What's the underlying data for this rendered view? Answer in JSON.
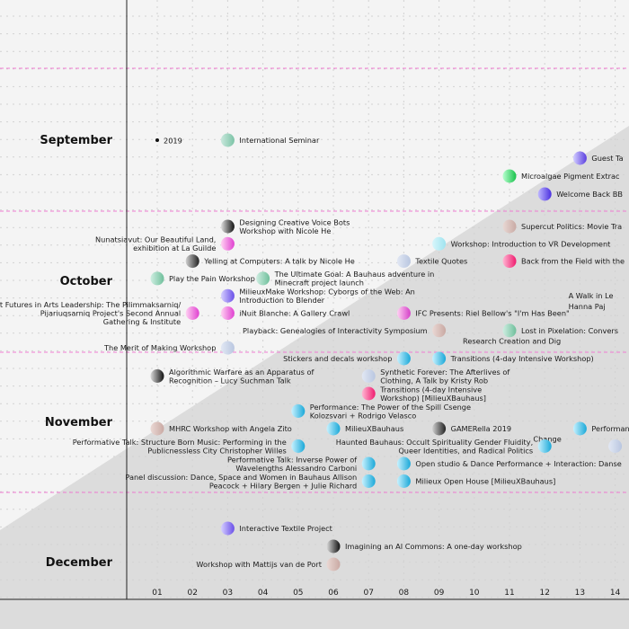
{
  "colors": {
    "background": "#f4f4f4",
    "wedge": "#dcdcdc",
    "grid": "#d2d2d2",
    "month_line": "#f07bd2",
    "axis": "#222222"
  },
  "chart_data": {
    "type": "scatter",
    "title": "",
    "xlabel": "",
    "ylabel": "",
    "x_tick_labels": [
      "01",
      "02",
      "03",
      "04",
      "05",
      "06",
      "07",
      "08",
      "09",
      "10",
      "11",
      "12",
      "13",
      "14"
    ],
    "months": [
      "September",
      "October",
      "November",
      "December"
    ],
    "year_label": "2019",
    "events": [
      {
        "label": "International Seminar",
        "month": "September",
        "day": 3,
        "row": 0,
        "color": [
          "#c9e8dd",
          "#7cc3a6"
        ],
        "label_side": "right"
      },
      {
        "label": "Guest Ta",
        "month": "September",
        "day": 13,
        "row": 1,
        "color": [
          "#d4d0ff",
          "#5b3fe0"
        ],
        "label_side": "right"
      },
      {
        "label": "Microalgae Pigment Extrac",
        "month": "September",
        "day": 11,
        "row": 2,
        "color": [
          "#b8ffd0",
          "#18c24a"
        ],
        "label_side": "right"
      },
      {
        "label": "Welcome Back BB",
        "month": "September",
        "day": 12,
        "row": 3,
        "color": [
          "#bfb8ff",
          "#4a2fe0"
        ],
        "label_side": "right"
      },
      {
        "label": "Designing Creative Voice Bots Workshop with Nicole He",
        "month": "October",
        "day": 3,
        "row": 0,
        "color": [
          "#e0e0e0",
          "#111111"
        ],
        "label_side": "right"
      },
      {
        "label": "Supercut Politics: Movie Tra",
        "month": "October",
        "day": 11,
        "row": 0,
        "color": [
          "#e8d8d4",
          "#c9aaa4"
        ],
        "label_side": "right"
      },
      {
        "label": "Nunatsiavut: Our Beautiful Land, exhibition at La Guilde",
        "month": "October",
        "day": 3,
        "row": 1,
        "color": [
          "#ffd2f2",
          "#e040d0"
        ],
        "label_side": "left"
      },
      {
        "label": "Workshop: Introduction to VR Development",
        "month": "October",
        "day": 9,
        "row": 1,
        "color": [
          "#d8f6fb",
          "#9fe3ef"
        ],
        "label_side": "right"
      },
      {
        "label": "Yelling at Computers: A talk by Nicole He",
        "month": "October",
        "day": 2,
        "row": 2,
        "color": [
          "#d0d0d0",
          "#222222"
        ],
        "label_side": "right"
      },
      {
        "label": "Textile Quotes",
        "month": "October",
        "day": 8,
        "row": 2,
        "color": [
          "#e2e8f4",
          "#b9c6e0"
        ],
        "label_side": "right"
      },
      {
        "label": "Back from the Field with the",
        "month": "October",
        "day": 11,
        "row": 2,
        "color": [
          "#ffb8d4",
          "#f01b6e"
        ],
        "label_side": "right"
      },
      {
        "label": "Play the Pain Workshop",
        "month": "October",
        "day": 1,
        "row": 3,
        "color": [
          "#cfeee2",
          "#6fbf9b"
        ],
        "label_side": "right"
      },
      {
        "label": "The Ultimate Goal: A Bauhaus adventure in Minecraft project launch",
        "month": "October",
        "day": 4,
        "row": 3,
        "color": [
          "#cfeee2",
          "#6fbf9b"
        ],
        "label_side": "right"
      },
      {
        "label": "MilieuxMake Workshop: Cyborgs of the Web: An Introduction to Blender",
        "month": "October",
        "day": 3,
        "row": 4,
        "color": [
          "#d6d0ff",
          "#6a4fe8"
        ],
        "label_side": "right"
      },
      {
        "label": "A Walk in Le",
        "month": "October",
        "day": 14,
        "row": 4,
        "color": [
          "#e0e0e0",
          "#999999"
        ],
        "label_side": "none"
      },
      {
        "label": "Hanna Paj",
        "month": "October",
        "day": 14,
        "row": 4.6,
        "color": [
          "#e0e0e0",
          "#999999"
        ],
        "label_side": "none"
      },
      {
        "label": "Inuit Futures in Arts Leadership: The Pilimmaksarniq/ Pijariuqsarniq Project's Second Annual Gathering & Institute",
        "month": "October",
        "day": 2,
        "row": 5,
        "color": [
          "#ffd2f2",
          "#e040d0"
        ],
        "label_side": "left"
      },
      {
        "label": "iNuit Blanche: A Gallery Crawl",
        "month": "October",
        "day": 3,
        "row": 5,
        "color": [
          "#ffd2f2",
          "#e040d0"
        ],
        "label_side": "right"
      },
      {
        "label": "IFC Presents: Riel Bellow's \"I'm Has Been\"",
        "month": "October",
        "day": 8,
        "row": 5,
        "color": [
          "#ffd2f2",
          "#d53fc8"
        ],
        "label_side": "right"
      },
      {
        "label": "Playback: Genealogies of Interactivity Symposium",
        "month": "October",
        "day": 9,
        "row": 6,
        "color": [
          "#ead8d4",
          "#c9a9a3"
        ],
        "label_side": "left"
      },
      {
        "label": "Lost in Pixelation: Convers",
        "month": "October",
        "day": 11,
        "row": 6,
        "color": [
          "#cfeee2",
          "#6fbf9b"
        ],
        "label_side": "right"
      },
      {
        "label": "Research Creation and Dig",
        "month": "October",
        "day": 11,
        "row": 6.6,
        "color": [
          "#cfeee2",
          "#6fbf9b"
        ],
        "label_side": "none"
      },
      {
        "label": "The Merit of Making Workshop",
        "month": "October",
        "day": 3,
        "row": 7,
        "color": [
          "#e2e8f4",
          "#b9c6e0"
        ],
        "label_side": "left"
      },
      {
        "label": "Stickers and decals workshop",
        "month": "November",
        "day": 8,
        "row": 0,
        "color": [
          "#c8f2ff",
          "#1aa8d8"
        ],
        "label_side": "left"
      },
      {
        "label": "Transitions (4-day Intensive Workshop)",
        "month": "November",
        "day": 9,
        "row": 0,
        "color": [
          "#c8f2ff",
          "#1aa8d8"
        ],
        "label_side": "right"
      },
      {
        "label": "Algorithmic Warfare as an Apparatus of Recognition – Lucy Suchman Talk",
        "month": "November",
        "day": 1,
        "row": 1,
        "color": [
          "#dadada",
          "#111111"
        ],
        "label_side": "right"
      },
      {
        "label": "Synthetic Forever: The Afterlives of Clothing, A Talk by Kristy Rob",
        "month": "November",
        "day": 7,
        "row": 1,
        "color": [
          "#e2e8f4",
          "#b9c6e0"
        ],
        "label_side": "right"
      },
      {
        "label": "Transitions (4-day Intensive Workshop) [MilieuXBauhaus]",
        "month": "November",
        "day": 7,
        "row": 2,
        "color": [
          "#ffb8d4",
          "#f01b6e"
        ],
        "label_side": "right"
      },
      {
        "label": "Performance: The Power of the Spill Csenge Kolozsvari + Rodrigo Velasco",
        "month": "November",
        "day": 5,
        "row": 3,
        "color": [
          "#c8f2ff",
          "#1aa8d8"
        ],
        "label_side": "right"
      },
      {
        "label": "MHRC Workshop with Angela Zito",
        "month": "November",
        "day": 1,
        "row": 4,
        "color": [
          "#ead8d4",
          "#c9a9a3"
        ],
        "label_side": "right"
      },
      {
        "label": "MilieuXBauhaus",
        "month": "November",
        "day": 6,
        "row": 4,
        "color": [
          "#c8f2ff",
          "#1aa8d8"
        ],
        "label_side": "right"
      },
      {
        "label": "GAMERella 2019",
        "month": "November",
        "day": 9,
        "row": 4,
        "color": [
          "#d0d0d0",
          "#222222"
        ],
        "label_side": "right"
      },
      {
        "label": "Performan",
        "month": "November",
        "day": 13,
        "row": 4,
        "color": [
          "#c8f2ff",
          "#1aa8d8"
        ],
        "label_side": "right"
      },
      {
        "label": "Change",
        "month": "November",
        "day": 13,
        "row": 4.6,
        "color": [
          "#c8f2ff",
          "#1aa8d8"
        ],
        "label_side": "none"
      },
      {
        "label": "Performative Talk: Structure Born Music: Performing in the Publicnessless City Christopher Willes",
        "month": "November",
        "day": 5,
        "row": 5,
        "color": [
          "#c8f2ff",
          "#1aa8d8"
        ],
        "label_side": "left"
      },
      {
        "label": "Haunted Bauhaus: Occult Spirituality Gender Fluidity, Queer Identities, and Radical Politics",
        "month": "November",
        "day": 12,
        "row": 5,
        "color": [
          "#c8f2ff",
          "#1aa8d8"
        ],
        "label_side": "left"
      },
      {
        "label": "",
        "month": "November",
        "day": 14,
        "row": 5,
        "color": [
          "#e2e8f4",
          "#b9c6e0"
        ],
        "label_side": "none"
      },
      {
        "label": "Performative Talk: Inverse Power of Wavelengths Alessandro Carboni",
        "month": "November",
        "day": 7,
        "row": 6,
        "color": [
          "#c8f2ff",
          "#1aa8d8"
        ],
        "label_side": "left"
      },
      {
        "label": "Open studio & Dance Performance + Interaction: Danse",
        "month": "November",
        "day": 8,
        "row": 6,
        "color": [
          "#c8f2ff",
          "#1aa8d8"
        ],
        "label_side": "right"
      },
      {
        "label": "Panel discussion: Dance, Space and Women in Bauhaus Allison Peacock + Hilary Bergen + Julie Richard",
        "month": "November",
        "day": 7,
        "row": 7,
        "color": [
          "#c8f2ff",
          "#1aa8d8"
        ],
        "label_side": "left"
      },
      {
        "label": "Milieux Open House [MilieuXBauhaus]",
        "month": "November",
        "day": 8,
        "row": 7,
        "color": [
          "#c8f2ff",
          "#1aa8d8"
        ],
        "label_side": "right"
      },
      {
        "label": "Interactive Textile Project",
        "month": "December",
        "day": 3,
        "row": 0,
        "color": [
          "#d6d0ff",
          "#6a4fe8"
        ],
        "label_side": "right"
      },
      {
        "label": "Imagining an AI Commons: A one-day workshop",
        "month": "December",
        "day": 6,
        "row": 1,
        "color": [
          "#dadada",
          "#111111"
        ],
        "label_side": "right"
      },
      {
        "label": "Workshop with Mattijs van de Port",
        "month": "December",
        "day": 6,
        "row": 2,
        "color": [
          "#ead8d4",
          "#c9a9a3"
        ],
        "label_side": "left"
      }
    ]
  }
}
